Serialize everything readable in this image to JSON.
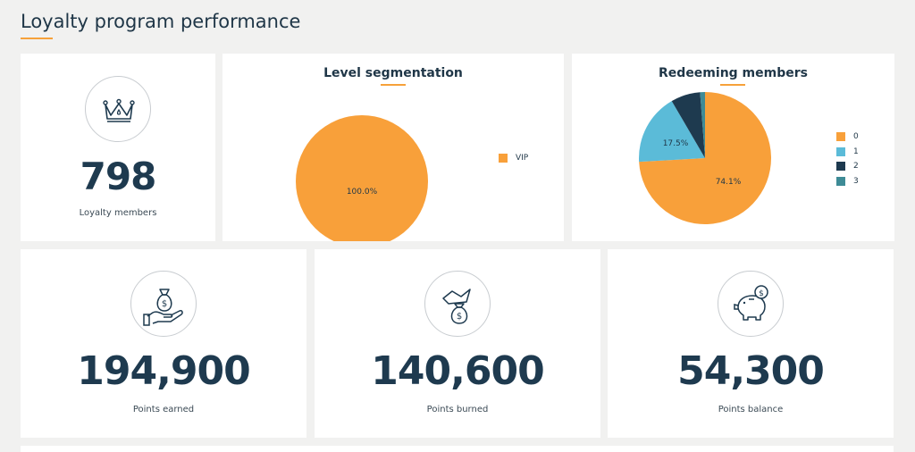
{
  "page": {
    "title": "Loyalty program performance",
    "accent_color": "#f6a13a"
  },
  "members_card": {
    "icon": "crown-icon",
    "value": "798",
    "caption": "Loyalty members"
  },
  "level_segmentation": {
    "title": "Level segmentation",
    "legend": [
      {
        "label": "VIP",
        "color": "#f8a03a"
      }
    ]
  },
  "redeeming_members": {
    "title": "Redeeming members",
    "legend": [
      {
        "label": "0",
        "color": "#f8a03a"
      },
      {
        "label": "1",
        "color": "#5bbbd8"
      },
      {
        "label": "2",
        "color": "#1e3a4f"
      },
      {
        "label": "3",
        "color": "#3e8b96"
      }
    ]
  },
  "points_earned": {
    "icon": "money-bag-hand-icon",
    "value": "194,900",
    "caption": "Points earned"
  },
  "points_burned": {
    "icon": "money-bag-fire-icon",
    "value": "140,600",
    "caption": "Points burned"
  },
  "points_balance": {
    "icon": "piggy-bank-icon",
    "value": "54,300",
    "caption": "Points balance"
  },
  "chart_data": [
    {
      "type": "pie",
      "title": "Level segmentation",
      "categories": [
        "VIP"
      ],
      "values": [
        100.0
      ],
      "colors": [
        "#f8a03a"
      ],
      "labels": [
        "100.0%"
      ],
      "legend": "right"
    },
    {
      "type": "pie",
      "title": "Redeeming members",
      "categories": [
        "0",
        "1",
        "2",
        "3"
      ],
      "values": [
        74.1,
        17.5,
        7.2,
        1.2
      ],
      "colors": [
        "#f8a03a",
        "#5bbbd8",
        "#1e3a4f",
        "#3e8b96"
      ],
      "labels": [
        "74.1%",
        "17.5%",
        "",
        ""
      ],
      "legend": "right"
    }
  ]
}
